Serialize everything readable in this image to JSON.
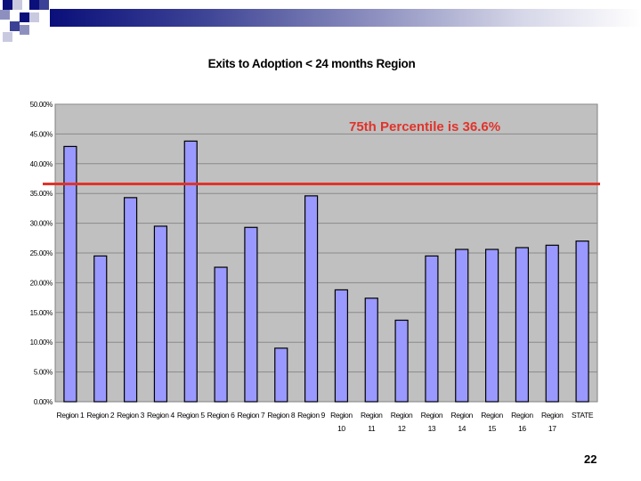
{
  "slide": {
    "page_number": "22"
  },
  "chart_data": {
    "type": "bar",
    "title": "Exits to Adoption < 24 months Region",
    "categories": [
      [
        "Region 1"
      ],
      [
        "Region 2"
      ],
      [
        "Region 3"
      ],
      [
        "Region 4"
      ],
      [
        "Region 5"
      ],
      [
        "Region 6"
      ],
      [
        "Region 7"
      ],
      [
        "Region 8"
      ],
      [
        "Region 9"
      ],
      [
        "Region",
        "10"
      ],
      [
        "Region",
        "11"
      ],
      [
        "Region",
        "12"
      ],
      [
        "Region",
        "13"
      ],
      [
        "Region",
        "14"
      ],
      [
        "Region",
        "15"
      ],
      [
        "Region",
        "16"
      ],
      [
        "Region",
        "17"
      ],
      [
        "STATE"
      ]
    ],
    "values": [
      42.9,
      24.5,
      34.3,
      29.5,
      43.8,
      22.6,
      29.3,
      9.0,
      34.6,
      18.8,
      17.4,
      13.7,
      24.5,
      25.6,
      25.6,
      25.9,
      26.3,
      27.0
    ],
    "ylim": [
      0,
      50
    ],
    "yticks": [
      0,
      5,
      10,
      15,
      20,
      25,
      30,
      35,
      40,
      45,
      50
    ],
    "ytick_labels": [
      "0.00%",
      "5.00%",
      "10.00%",
      "15.00%",
      "20.00%",
      "25.00%",
      "30.00%",
      "35.00%",
      "40.00%",
      "45.00%",
      "50.00%"
    ],
    "xlabel": "",
    "ylabel": "",
    "grid": true,
    "reference_line": {
      "value": 36.6,
      "label": "75th Percentile is 36.6%",
      "color": "#e0332b"
    },
    "colors": {
      "bar_fill": "#9999ff",
      "bar_stroke": "#000000",
      "plot_bg": "#c0c0c0",
      "gridline": "#8a8a8a"
    }
  }
}
